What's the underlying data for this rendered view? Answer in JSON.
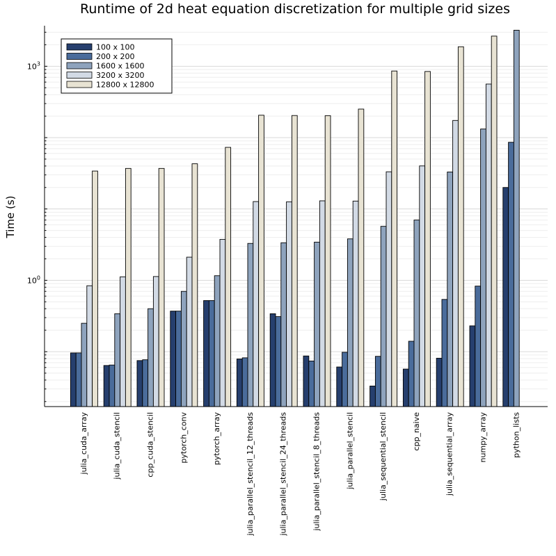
{
  "chart_data": {
    "type": "bar",
    "title": "Runtime of 2d heat equation discretization for multiple grid sizes",
    "xlabel": "",
    "ylabel": "Time (s)",
    "yscale": "log10",
    "ylim": [
      0.017,
      3700
    ],
    "yticks": [
      1,
      1000
    ],
    "ytick_labels": [
      {
        "base": "10",
        "exp": "0"
      },
      {
        "base": "10",
        "exp": "3"
      }
    ],
    "grid": true,
    "legend_position": "top-left",
    "categories": [
      "julia_cuda_array",
      "julia_cuda_stencil",
      "cpp_cuda_stencil",
      "pytorch_conv",
      "pytorch_array",
      "julia_parallel_stencil_12_threads",
      "julia_parallel_stencil_24_threads",
      "julia_parallel_stencil_8_threads",
      "julia_parallel_stencil",
      "julia_sequential_stencil",
      "cpp_naive",
      "julia_sequential_array",
      "numpy_array",
      "python_lists"
    ],
    "series": [
      {
        "name": "100 x 100",
        "color": "#263f6e",
        "values": [
          0.096,
          0.064,
          0.075,
          0.37,
          0.52,
          0.079,
          0.34,
          0.087,
          0.061,
          0.033,
          0.057,
          0.081,
          0.23,
          20
        ]
      },
      {
        "name": "200 x 200",
        "color": "#4a6c9b",
        "values": [
          0.096,
          0.065,
          0.077,
          0.37,
          0.52,
          0.082,
          0.31,
          0.074,
          0.098,
          0.086,
          0.14,
          0.54,
          0.83,
          86
        ]
      },
      {
        "name": "1600 x 1600",
        "color": "#8ea3bd",
        "values": [
          0.25,
          0.34,
          0.4,
          0.7,
          1.16,
          3.29,
          3.36,
          3.43,
          3.81,
          5.71,
          7.0,
          33,
          132,
          3200
        ]
      },
      {
        "name": "3200 x 3200",
        "color": "#d2dae5",
        "values": [
          0.84,
          1.12,
          1.13,
          2.11,
          3.75,
          12.7,
          12.6,
          13.0,
          12.9,
          33.2,
          40.1,
          174,
          563,
          null
        ]
      },
      {
        "name": "12800 x 12800",
        "color": "#e8e3d3",
        "values": [
          34,
          37,
          37,
          43,
          73,
          206,
          204,
          203,
          251,
          858,
          845,
          1877,
          2647,
          null
        ]
      }
    ]
  }
}
